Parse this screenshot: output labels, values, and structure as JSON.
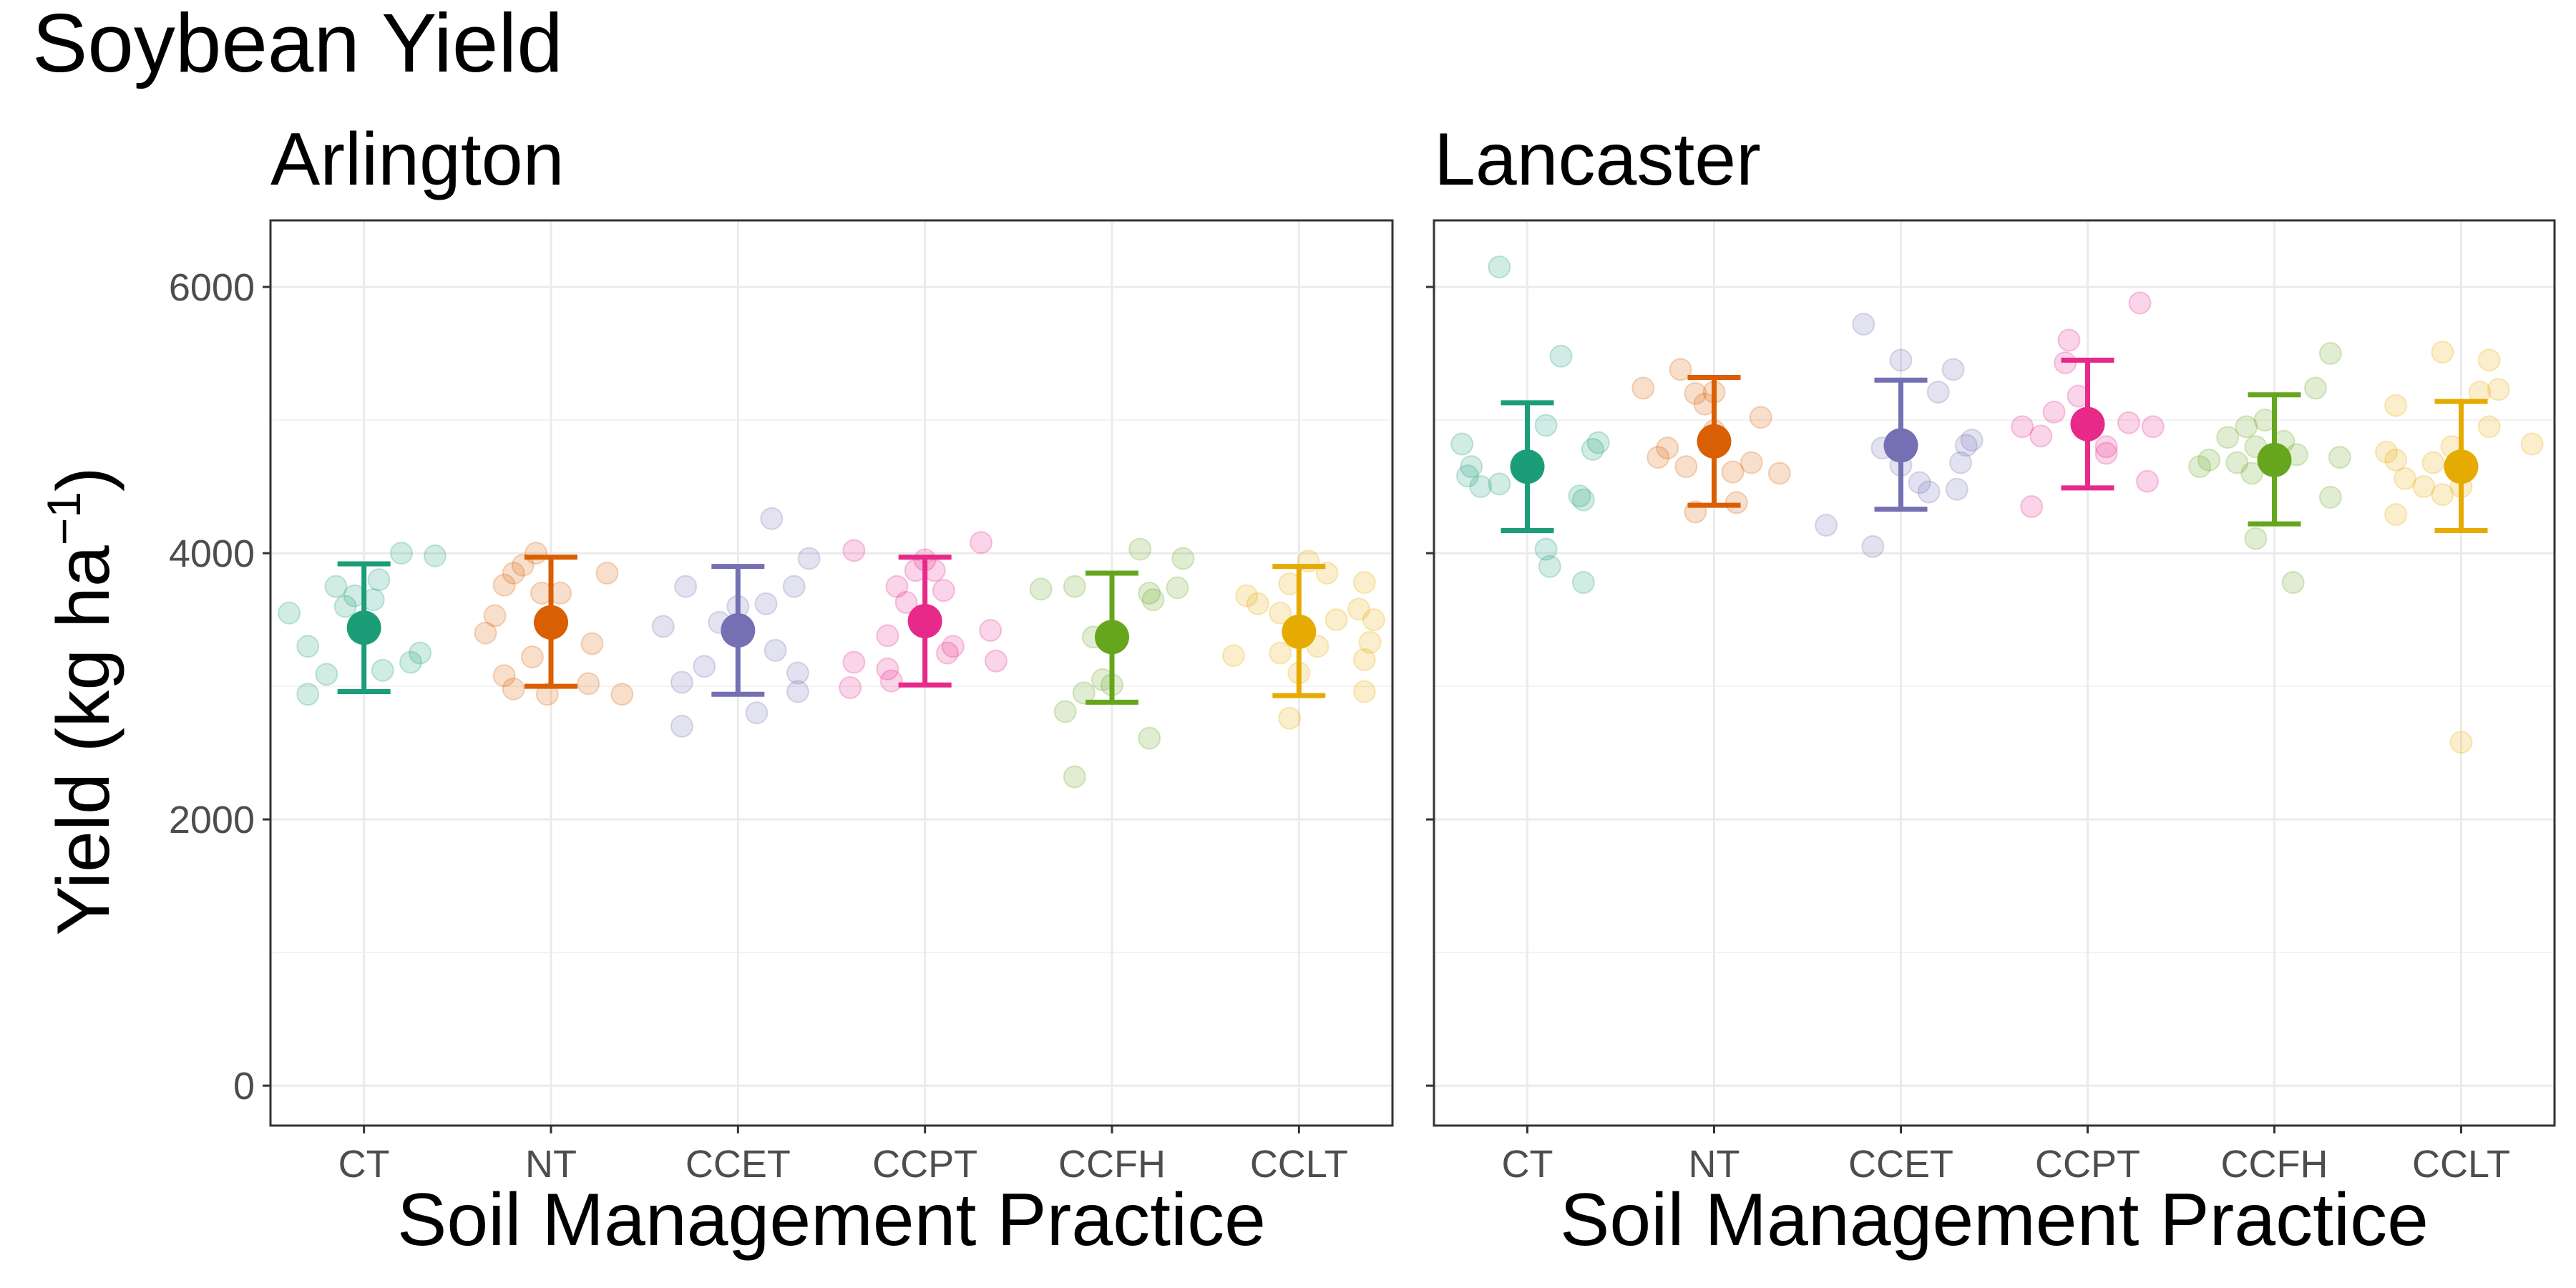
{
  "chart_data": {
    "type": "scatter",
    "title": "Soybean Yield",
    "ylabel_main": "Yield (kg ha",
    "ylabel_sup": "−1",
    "ylabel_close": ")",
    "ylim": [
      -300,
      6500
    ],
    "yticks": [
      0,
      2000,
      4000,
      6000
    ],
    "ytick_labels": [
      "0",
      "2000",
      "4000",
      "6000"
    ],
    "grid": true,
    "legend": "none",
    "categories": [
      "CT",
      "NT",
      "CCET",
      "CCPT",
      "CCFH",
      "CCLT"
    ],
    "colors": {
      "CT": "#1b9e77",
      "NT": "#d95f02",
      "CCET": "#7570b3",
      "CCPT": "#e7298a",
      "CCFH": "#66a61e",
      "CCLT": "#e6ab02"
    },
    "panels": [
      {
        "title": "Arlington",
        "xlabel": "Soil Management Practice",
        "groups": [
          {
            "category": "CT",
            "mean": 3440,
            "lower": 2960,
            "upper": 3920,
            "points": [
              [
                -0.4,
                3550
              ],
              [
                -0.3,
                2940
              ],
              [
                -0.3,
                3300
              ],
              [
                -0.2,
                3090
              ],
              [
                -0.15,
                3750
              ],
              [
                -0.1,
                3600
              ],
              [
                -0.05,
                3680
              ],
              [
                0.05,
                3650
              ],
              [
                0.1,
                3120
              ],
              [
                0.08,
                3800
              ],
              [
                0.2,
                4000
              ],
              [
                0.25,
                3180
              ],
              [
                0.3,
                3250
              ],
              [
                0.38,
                3980
              ]
            ]
          },
          {
            "category": "NT",
            "mean": 3480,
            "lower": 3000,
            "upper": 3970,
            "points": [
              [
                -0.35,
                3400
              ],
              [
                -0.3,
                3530
              ],
              [
                -0.25,
                3080
              ],
              [
                -0.25,
                3760
              ],
              [
                -0.2,
                3850
              ],
              [
                -0.2,
                2980
              ],
              [
                -0.15,
                3910
              ],
              [
                -0.1,
                3220
              ],
              [
                -0.08,
                4000
              ],
              [
                -0.05,
                3700
              ],
              [
                0.0,
                3430
              ],
              [
                -0.02,
                2940
              ],
              [
                0.05,
                3700
              ],
              [
                0.2,
                3020
              ],
              [
                0.22,
                3320
              ],
              [
                0.3,
                3850
              ],
              [
                0.38,
                2940
              ]
            ]
          },
          {
            "category": "CCET",
            "mean": 3420,
            "lower": 2940,
            "upper": 3900,
            "points": [
              [
                -0.4,
                3450
              ],
              [
                -0.3,
                2700
              ],
              [
                -0.3,
                3030
              ],
              [
                -0.28,
                3750
              ],
              [
                -0.18,
                3150
              ],
              [
                -0.1,
                3480
              ],
              [
                0.0,
                3600
              ],
              [
                0.1,
                2800
              ],
              [
                0.15,
                3620
              ],
              [
                0.18,
                4260
              ],
              [
                0.2,
                3270
              ],
              [
                0.3,
                3750
              ],
              [
                0.32,
                3100
              ],
              [
                0.32,
                2960
              ],
              [
                0.38,
                3960
              ]
            ]
          },
          {
            "category": "CCPT",
            "mean": 3490,
            "lower": 3010,
            "upper": 3970,
            "points": [
              [
                -0.4,
                2990
              ],
              [
                -0.38,
                3180
              ],
              [
                -0.38,
                4020
              ],
              [
                -0.2,
                3380
              ],
              [
                -0.2,
                3130
              ],
              [
                -0.18,
                3040
              ],
              [
                -0.15,
                3750
              ],
              [
                -0.1,
                3630
              ],
              [
                -0.05,
                3870
              ],
              [
                0.0,
                3950
              ],
              [
                0.05,
                3870
              ],
              [
                0.1,
                3720
              ],
              [
                0.15,
                3300
              ],
              [
                0.12,
                3250
              ],
              [
                0.3,
                4080
              ],
              [
                0.35,
                3420
              ],
              [
                0.38,
                3190
              ]
            ]
          },
          {
            "category": "CCFH",
            "mean": 3370,
            "lower": 2880,
            "upper": 3850,
            "points": [
              [
                -0.38,
                3730
              ],
              [
                -0.25,
                2810
              ],
              [
                -0.2,
                2320
              ],
              [
                -0.2,
                3750
              ],
              [
                -0.1,
                3370
              ],
              [
                -0.05,
                3050
              ],
              [
                0.0,
                3010
              ],
              [
                0.15,
                4030
              ],
              [
                0.2,
                2610
              ],
              [
                0.2,
                3700
              ],
              [
                0.22,
                3650
              ],
              [
                0.35,
                3740
              ],
              [
                0.38,
                3960
              ],
              [
                -0.15,
                2950
              ]
            ]
          },
          {
            "category": "CCLT",
            "mean": 3410,
            "lower": 2930,
            "upper": 3900,
            "points": [
              [
                -0.35,
                3230
              ],
              [
                -0.28,
                3680
              ],
              [
                -0.22,
                3620
              ],
              [
                -0.1,
                3550
              ],
              [
                -0.1,
                3250
              ],
              [
                -0.05,
                2760
              ],
              [
                -0.05,
                3770
              ],
              [
                0.0,
                3100
              ],
              [
                0.05,
                3940
              ],
              [
                0.1,
                3300
              ],
              [
                0.15,
                3850
              ],
              [
                0.2,
                3500
              ],
              [
                0.32,
                3580
              ],
              [
                0.35,
                2960
              ],
              [
                0.35,
                3780
              ],
              [
                0.38,
                3330
              ],
              [
                0.4,
                3500
              ],
              [
                0.35,
                3200
              ]
            ]
          }
        ]
      },
      {
        "title": "Lancaster",
        "xlabel": "Soil Management Practice",
        "groups": [
          {
            "category": "CT",
            "mean": 4650,
            "lower": 4170,
            "upper": 5130,
            "points": [
              [
                -0.35,
                4820
              ],
              [
                -0.32,
                4580
              ],
              [
                -0.3,
                4650
              ],
              [
                -0.25,
                4500
              ],
              [
                -0.15,
                6150
              ],
              [
                -0.15,
                4520
              ],
              [
                0.1,
                4960
              ],
              [
                0.1,
                4030
              ],
              [
                0.12,
                3900
              ],
              [
                0.18,
                5480
              ],
              [
                0.28,
                4430
              ],
              [
                0.3,
                4400
              ],
              [
                0.3,
                3780
              ],
              [
                0.35,
                4780
              ],
              [
                0.38,
                4830
              ]
            ]
          },
          {
            "category": "NT",
            "mean": 4840,
            "lower": 4360,
            "upper": 5320,
            "points": [
              [
                -0.38,
                5240
              ],
              [
                -0.3,
                4720
              ],
              [
                -0.25,
                4790
              ],
              [
                -0.18,
                5380
              ],
              [
                -0.15,
                4650
              ],
              [
                -0.1,
                4310
              ],
              [
                -0.1,
                5200
              ],
              [
                -0.05,
                5120
              ],
              [
                0.0,
                4920
              ],
              [
                0.0,
                5210
              ],
              [
                0.1,
                4610
              ],
              [
                0.12,
                4380
              ],
              [
                0.2,
                4680
              ],
              [
                0.25,
                5020
              ],
              [
                0.35,
                4600
              ]
            ]
          },
          {
            "category": "CCET",
            "mean": 4810,
            "lower": 4330,
            "upper": 5300,
            "points": [
              [
                -0.4,
                4210
              ],
              [
                -0.2,
                5720
              ],
              [
                -0.15,
                4050
              ],
              [
                -0.1,
                4790
              ],
              [
                0.0,
                4810
              ],
              [
                0.0,
                4660
              ],
              [
                0.0,
                5450
              ],
              [
                0.1,
                4530
              ],
              [
                0.15,
                4460
              ],
              [
                0.2,
                5210
              ],
              [
                0.28,
                5380
              ],
              [
                0.3,
                4480
              ],
              [
                0.32,
                4680
              ],
              [
                0.35,
                4810
              ],
              [
                0.38,
                4850
              ]
            ]
          },
          {
            "category": "CCPT",
            "mean": 4970,
            "lower": 4490,
            "upper": 5450,
            "points": [
              [
                -0.35,
                4950
              ],
              [
                -0.3,
                4350
              ],
              [
                -0.25,
                4880
              ],
              [
                -0.18,
                5060
              ],
              [
                -0.12,
                5430
              ],
              [
                -0.1,
                5600
              ],
              [
                -0.05,
                5180
              ],
              [
                0.0,
                4920
              ],
              [
                0.1,
                4750
              ],
              [
                0.1,
                4800
              ],
              [
                0.22,
                4980
              ],
              [
                0.28,
                5880
              ],
              [
                0.32,
                4540
              ],
              [
                0.35,
                4950
              ]
            ]
          },
          {
            "category": "CCFH",
            "mean": 4700,
            "lower": 4220,
            "upper": 5190,
            "points": [
              [
                -0.4,
                4650
              ],
              [
                -0.35,
                4700
              ],
              [
                -0.25,
                4870
              ],
              [
                -0.2,
                4680
              ],
              [
                -0.15,
                4950
              ],
              [
                -0.12,
                4600
              ],
              [
                -0.1,
                4800
              ],
              [
                -0.1,
                4110
              ],
              [
                -0.05,
                5000
              ],
              [
                0.05,
                4840
              ],
              [
                0.12,
                4740
              ],
              [
                0.1,
                3780
              ],
              [
                0.22,
                5240
              ],
              [
                0.3,
                5500
              ],
              [
                0.3,
                4420
              ],
              [
                0.35,
                4720
              ]
            ]
          },
          {
            "category": "CCLT",
            "mean": 4650,
            "lower": 4170,
            "upper": 5140,
            "points": [
              [
                -0.4,
                4760
              ],
              [
                -0.35,
                4700
              ],
              [
                -0.35,
                5110
              ],
              [
                -0.35,
                4290
              ],
              [
                -0.3,
                4560
              ],
              [
                -0.2,
                4500
              ],
              [
                -0.15,
                4680
              ],
              [
                -0.1,
                5510
              ],
              [
                -0.1,
                4440
              ],
              [
                -0.05,
                4800
              ],
              [
                0.0,
                4500
              ],
              [
                0.0,
                2580
              ],
              [
                0.1,
                5210
              ],
              [
                0.15,
                4950
              ],
              [
                0.15,
                5450
              ],
              [
                0.2,
                5230
              ],
              [
                0.38,
                4820
              ]
            ]
          }
        ]
      }
    ]
  }
}
